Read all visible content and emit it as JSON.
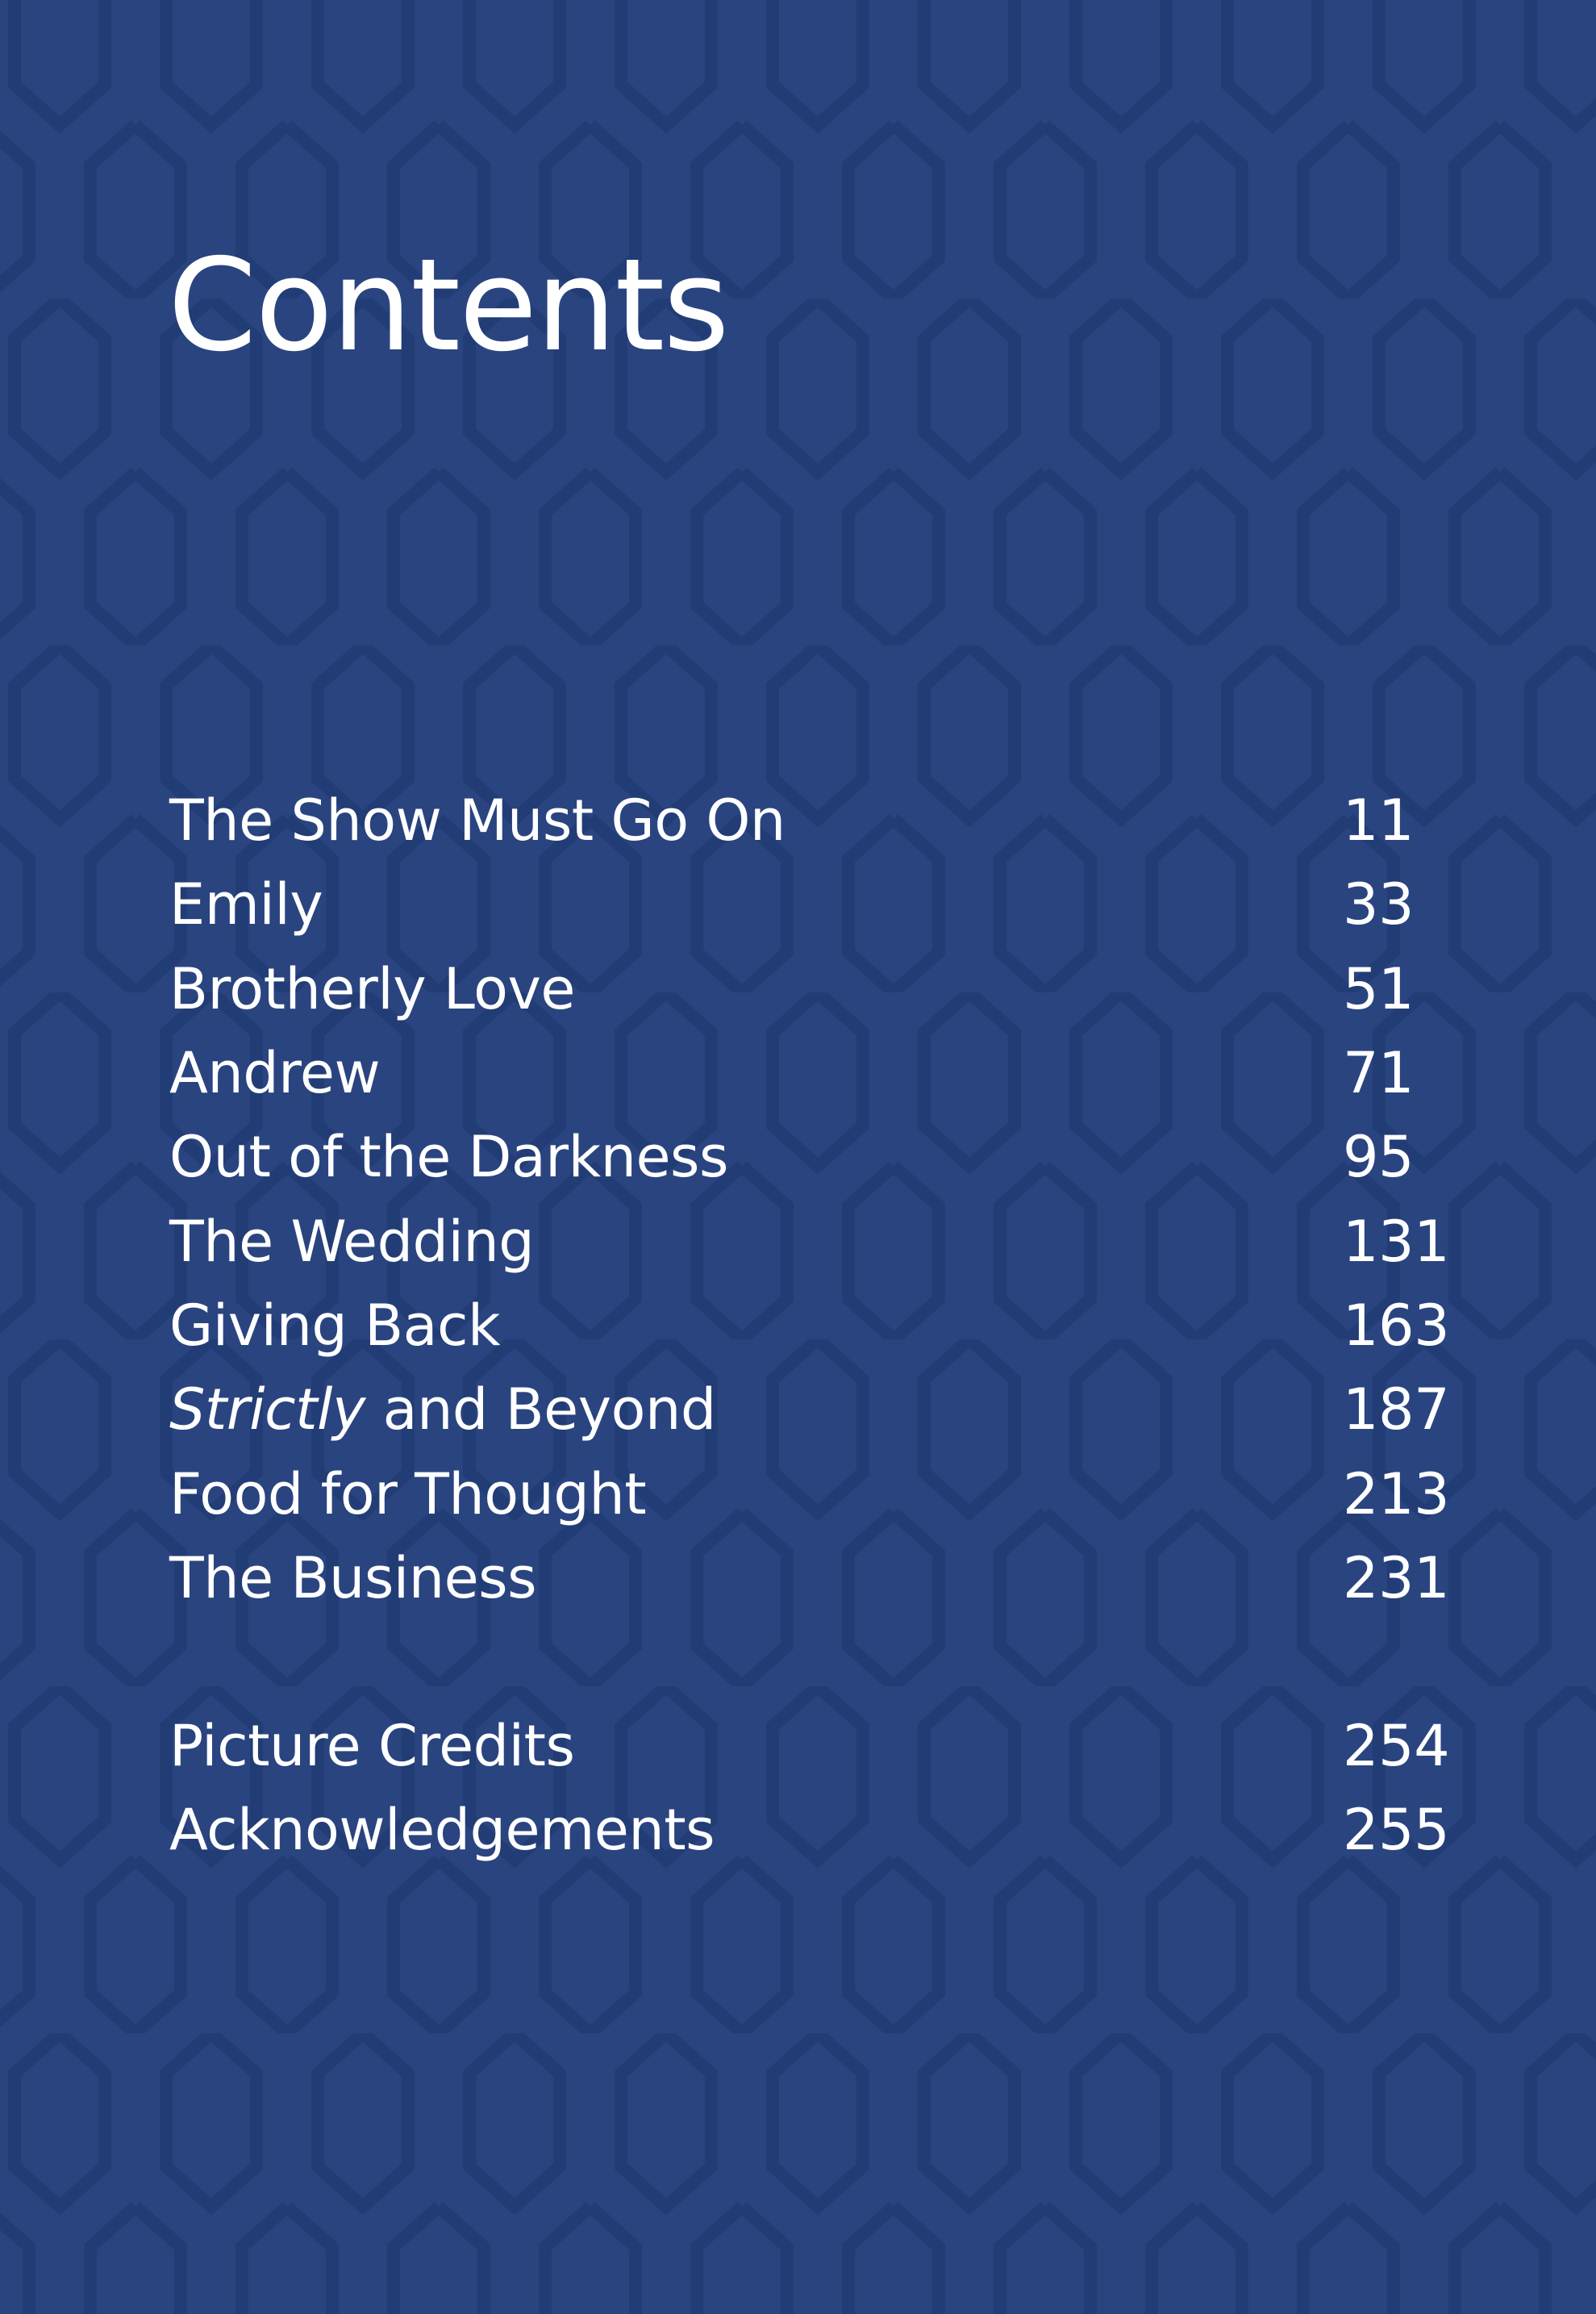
{
  "title": "Contents",
  "colors": {
    "background": "#2a4480",
    "pattern": "#223a70",
    "text": "#ffffff"
  },
  "chapters": [
    {
      "label": "The Show Must Go On",
      "page": "11"
    },
    {
      "label": "Emily",
      "page": "33"
    },
    {
      "label": "Brotherly Love",
      "page": "51"
    },
    {
      "label": "Andrew",
      "page": "71"
    },
    {
      "label": "Out of the Darkness",
      "page": "95"
    },
    {
      "label": "The Wedding",
      "page": "131"
    },
    {
      "label": "Giving Back",
      "page": "163"
    },
    {
      "label_italic": "Strictly",
      "label_rest": " and Beyond",
      "page": "187"
    },
    {
      "label": "Food for Thought",
      "page": "213"
    },
    {
      "label": "The Business",
      "page": "231"
    }
  ],
  "back_matter": [
    {
      "label": "Picture Credits",
      "page": "254"
    },
    {
      "label": "Acknowledgements",
      "page": "255"
    }
  ]
}
